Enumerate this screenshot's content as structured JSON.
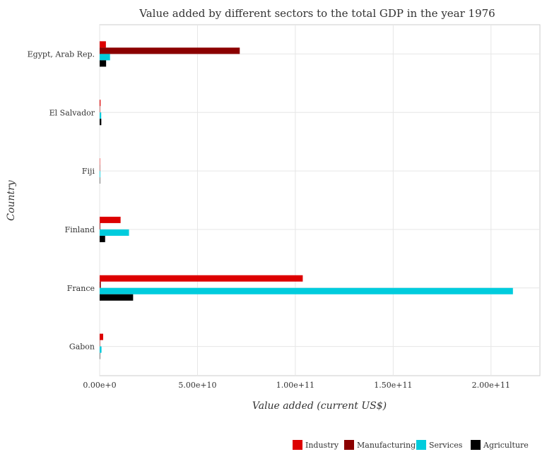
{
  "chart_data": {
    "type": "bar",
    "orientation": "horizontal",
    "title": "Value added by different sectors to the total GDP in the year 1976",
    "xlabel": "Value added (current US$)",
    "ylabel": "Country",
    "categories": [
      "Egypt, Arab Rep.",
      "El Salvador",
      "Fiji",
      "Finland",
      "France",
      "Gabon"
    ],
    "xlim": [
      0,
      225000000000
    ],
    "xticks": [
      0,
      50000000000,
      100000000000,
      150000000000,
      200000000000
    ],
    "xtick_labels": [
      "0.00e+0",
      "5.00e+10",
      "1.00e+11",
      "1.50e+11",
      "2.00e+11"
    ],
    "grid": true,
    "legend_position": "bottom-right",
    "series": [
      {
        "name": "Industry",
        "color": "#dd0000",
        "values": [
          3200000000,
          450000000,
          70000000,
          10700000000,
          103800000000,
          1800000000
        ]
      },
      {
        "name": "Manufacturing",
        "color": "#8b0000",
        "values": [
          71600000000,
          200000000,
          40000000,
          300000000,
          600000000,
          80000000
        ]
      },
      {
        "name": "Services",
        "color": "#00ccdd",
        "values": [
          5300000000,
          800000000,
          300000000,
          15000000000,
          211200000000,
          950000000
        ]
      },
      {
        "name": "Agriculture",
        "color": "#000000",
        "values": [
          3300000000,
          850000000,
          80000000,
          2800000000,
          17100000000,
          60000000
        ]
      }
    ]
  }
}
